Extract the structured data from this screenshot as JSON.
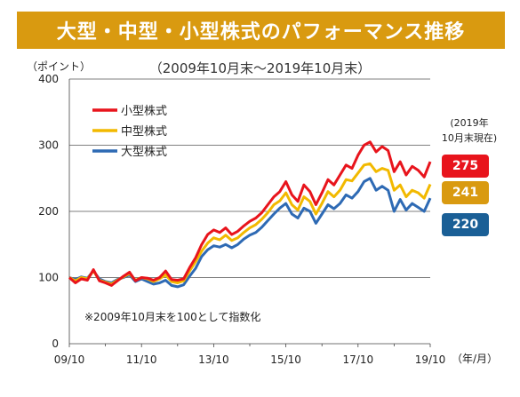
{
  "title": "大型・中型・小型株式のパフォーマンス推移",
  "subtitle": "（2009年10月末～2019年10月末）",
  "y_unit": "（ポイント）",
  "x_unit": "（年/月）",
  "note": "※2009年10月末を100として指数化",
  "side_caption": [
    "(2019年",
    "10月末現在)"
  ],
  "badges": [
    {
      "label": "275",
      "color": "#e8141c"
    },
    {
      "label": "241",
      "color": "#d99a10"
    },
    {
      "label": "220",
      "color": "#1a5f96"
    }
  ],
  "chart_data": {
    "type": "line",
    "x_ticks": [
      "09/10",
      "11/10",
      "13/10",
      "15/10",
      "17/10",
      "19/10"
    ],
    "x_tick_months": [
      0,
      24,
      48,
      72,
      96,
      120
    ],
    "ylim": [
      0,
      400
    ],
    "y_ticks": [
      "0",
      "100",
      "200",
      "300",
      "400"
    ],
    "grid": true,
    "legend_position": "top-left",
    "x_months": [
      0,
      2,
      4,
      6,
      8,
      10,
      12,
      14,
      16,
      18,
      20,
      22,
      24,
      26,
      28,
      30,
      32,
      34,
      36,
      38,
      40,
      42,
      44,
      46,
      48,
      50,
      52,
      54,
      56,
      58,
      60,
      62,
      64,
      66,
      68,
      70,
      72,
      74,
      76,
      78,
      80,
      82,
      84,
      86,
      88,
      90,
      92,
      94,
      96,
      98,
      100,
      102,
      104,
      106,
      108,
      110,
      112,
      114,
      116,
      118,
      120
    ],
    "series": [
      {
        "name": "小型株式",
        "color": "#e8141c",
        "values": [
          100,
          92,
          98,
          96,
          112,
          95,
          92,
          88,
          95,
          102,
          108,
          95,
          100,
          99,
          96,
          100,
          110,
          97,
          96,
          98,
          115,
          130,
          150,
          165,
          172,
          168,
          175,
          165,
          170,
          178,
          185,
          190,
          198,
          210,
          222,
          230,
          245,
          225,
          215,
          240,
          230,
          210,
          228,
          248,
          240,
          255,
          270,
          265,
          285,
          300,
          305,
          290,
          298,
          292,
          260,
          275,
          255,
          268,
          262,
          252,
          275
        ]
      },
      {
        "name": "中型株式",
        "color": "#f2b900",
        "values": [
          100,
          95,
          100,
          98,
          110,
          96,
          93,
          90,
          96,
          101,
          106,
          96,
          100,
          98,
          94,
          98,
          104,
          94,
          92,
          95,
          110,
          124,
          140,
          152,
          160,
          157,
          164,
          156,
          160,
          168,
          175,
          180,
          188,
          198,
          210,
          216,
          228,
          210,
          202,
          222,
          215,
          196,
          212,
          230,
          222,
          232,
          248,
          246,
          258,
          270,
          272,
          260,
          265,
          262,
          232,
          240,
          222,
          232,
          228,
          220,
          241
        ]
      },
      {
        "name": "大型株式",
        "color": "#2e6ab4",
        "values": [
          100,
          97,
          101,
          99,
          110,
          98,
          94,
          92,
          97,
          100,
          104,
          94,
          98,
          94,
          90,
          92,
          96,
          88,
          86,
          89,
          102,
          114,
          132,
          142,
          148,
          146,
          150,
          145,
          150,
          158,
          164,
          168,
          176,
          186,
          196,
          205,
          212,
          196,
          190,
          205,
          200,
          182,
          196,
          210,
          204,
          212,
          225,
          220,
          230,
          245,
          250,
          232,
          238,
          232,
          200,
          218,
          202,
          212,
          206,
          200,
          220
        ]
      }
    ]
  }
}
